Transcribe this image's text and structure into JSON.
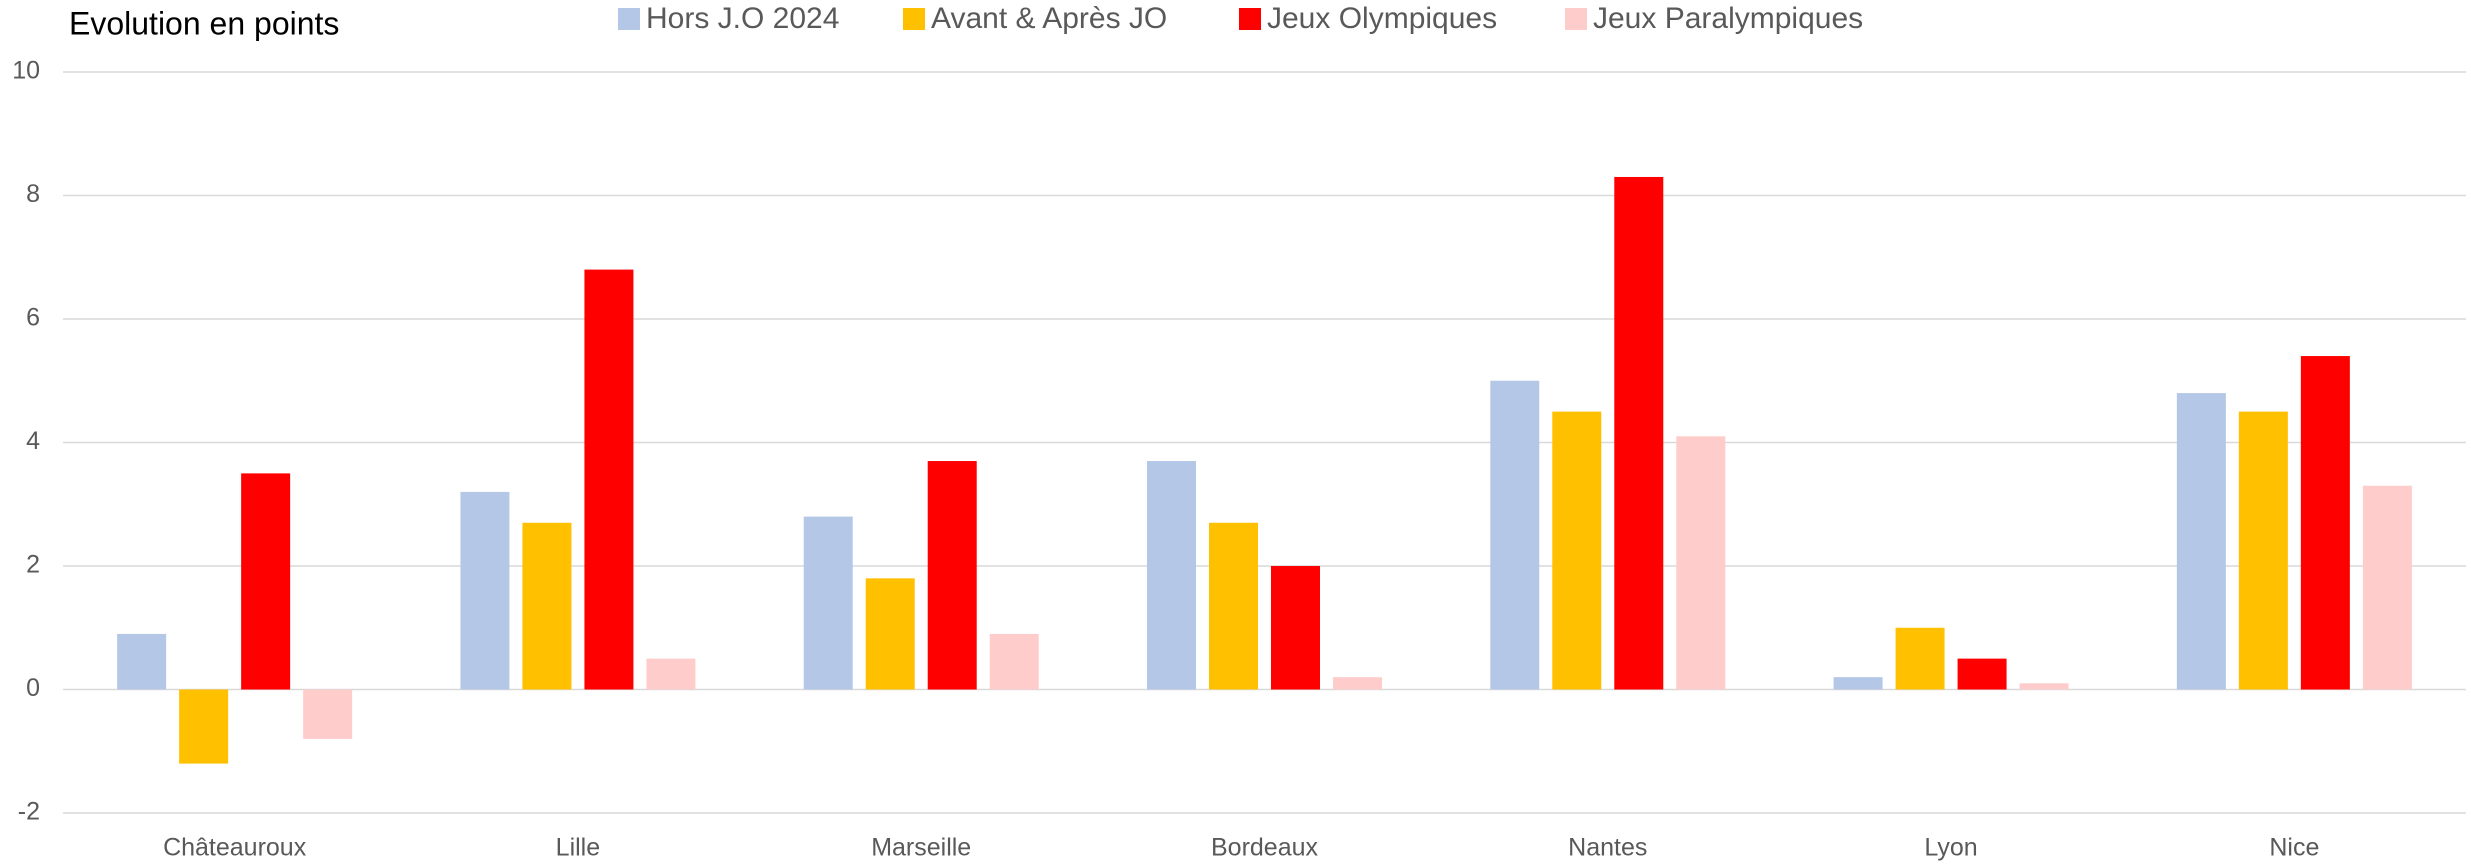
{
  "chart_data": {
    "type": "bar",
    "title": "Evolution en points",
    "categories": [
      "Châteauroux",
      "Lille",
      "Marseille",
      "Bordeaux",
      "Nantes",
      "Lyon",
      "Nice"
    ],
    "series": [
      {
        "name": "Hors J.O 2024",
        "color": "#b4c7e7",
        "values": [
          0.9,
          3.2,
          2.8,
          3.7,
          5.0,
          0.2,
          4.8
        ]
      },
      {
        "name": "Avant & Après JO",
        "color": "#ffc000",
        "values": [
          -1.2,
          2.7,
          1.8,
          2.7,
          4.5,
          1.0,
          4.5
        ]
      },
      {
        "name": "Jeux Olympiques",
        "color": "#ff0000",
        "values": [
          3.5,
          6.8,
          3.7,
          2.0,
          8.3,
          0.5,
          5.4
        ]
      },
      {
        "name": "Jeux Paralympiques",
        "color": "#ffcccc",
        "values": [
          -0.8,
          0.5,
          0.9,
          0.2,
          4.1,
          0.1,
          3.3
        ]
      }
    ],
    "ylim": [
      -2,
      10
    ],
    "yticks": [
      -2,
      0,
      2,
      4,
      6,
      8,
      10
    ],
    "grid": true,
    "legend": "top"
  }
}
